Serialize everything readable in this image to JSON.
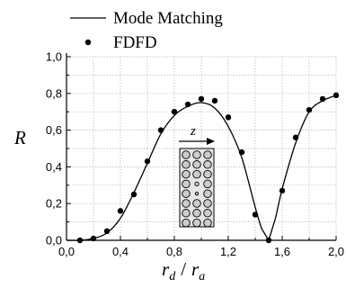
{
  "chart_data": {
    "type": "line",
    "xlim": [
      0,
      2.0
    ],
    "ylim": [
      0,
      1.0
    ],
    "x_ticks": [
      "0,0",
      "0,4",
      "0,8",
      "1,2",
      "1,6",
      "2,0"
    ],
    "x_tick_values": [
      0,
      0.4,
      0.8,
      1.2,
      1.6,
      2.0
    ],
    "y_ticks": [
      "0,0",
      "0,2",
      "0,4",
      "0,6",
      "0,8",
      "1,0"
    ],
    "y_tick_values": [
      0,
      0.2,
      0.4,
      0.6,
      0.8,
      1.0
    ],
    "grid": true,
    "legend_position": "top",
    "ylabel": "R",
    "xlabel_parts": {
      "r": "r",
      "sub_d": "d",
      "slash": "/",
      "r2": "r",
      "sub_a": "a"
    },
    "inset_label": "z",
    "series": [
      {
        "name": "Mode Matching",
        "style": "line",
        "color": "#000000",
        "x": [
          0.0,
          0.1,
          0.2,
          0.3,
          0.4,
          0.5,
          0.6,
          0.7,
          0.8,
          0.9,
          1.0,
          1.1,
          1.2,
          1.3,
          1.4,
          1.45,
          1.5,
          1.55,
          1.6,
          1.7,
          1.8,
          1.9,
          2.0
        ],
        "y": [
          0.0,
          0.0,
          0.01,
          0.04,
          0.12,
          0.26,
          0.42,
          0.58,
          0.68,
          0.73,
          0.75,
          0.72,
          0.62,
          0.45,
          0.18,
          0.06,
          0.0,
          0.12,
          0.28,
          0.53,
          0.7,
          0.76,
          0.79
        ]
      },
      {
        "name": "FDFD",
        "style": "markers",
        "color": "#000000",
        "x": [
          0.1,
          0.2,
          0.3,
          0.4,
          0.5,
          0.6,
          0.7,
          0.8,
          0.9,
          1.0,
          1.1,
          1.2,
          1.3,
          1.4,
          1.5,
          1.6,
          1.7,
          1.8,
          1.9,
          2.0
        ],
        "y": [
          0.0,
          0.01,
          0.05,
          0.16,
          0.25,
          0.43,
          0.6,
          0.7,
          0.74,
          0.77,
          0.76,
          0.67,
          0.48,
          0.14,
          0.0,
          0.27,
          0.56,
          0.71,
          0.77,
          0.79
        ]
      }
    ]
  }
}
